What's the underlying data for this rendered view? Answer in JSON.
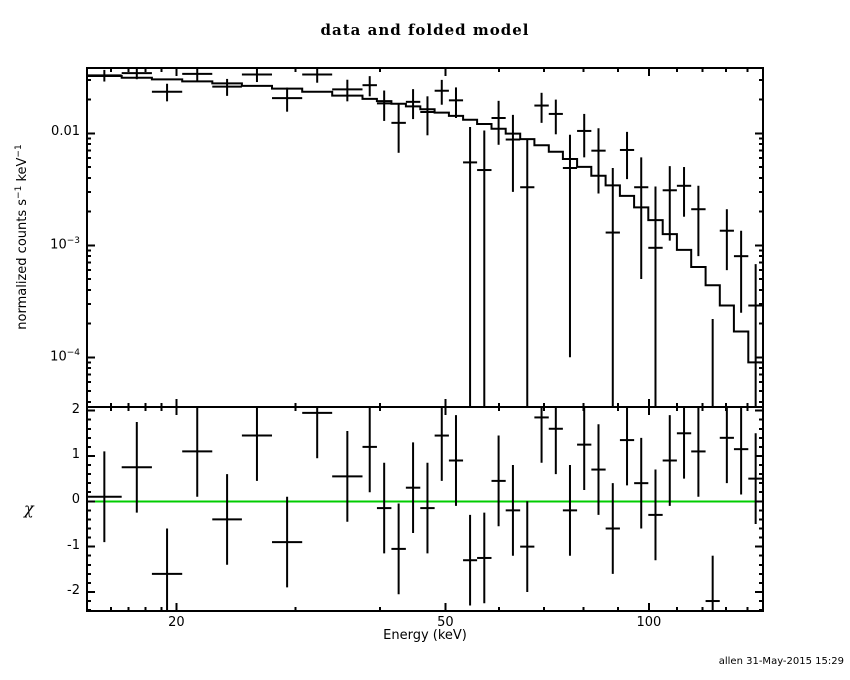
{
  "title": "data and folded model",
  "credit": "allen 31-May-2015 15:29",
  "colors": {
    "foreground": "#000000",
    "background": "#ffffff",
    "zero_line": "#00cc00"
  },
  "chart_data": {
    "type": "line",
    "subtype": "xspec-data-and-folded-model",
    "title": "data and folded model",
    "xlabel": "Energy (keV)",
    "x_scale": "log",
    "xlim": [
      14.75,
      147.5
    ],
    "x_major_ticks": [
      {
        "value": 20,
        "label": "20"
      },
      {
        "value": 50,
        "label": "50"
      },
      {
        "value": 100,
        "label": "100"
      }
    ],
    "x_minor_ticks": [
      16,
      17,
      18,
      19,
      30,
      40,
      60,
      70,
      80,
      90,
      110,
      120,
      130,
      140
    ],
    "panels": [
      {
        "name": "spectrum",
        "ylabel": "normalized counts s^-1 keV^-1",
        "ylabel_rich": [
          [
            "normalized counts s",
            false
          ],
          [
            "−1",
            true
          ],
          [
            " keV",
            false
          ],
          [
            "−1",
            true
          ]
        ],
        "y_scale": "log",
        "ylim": [
          3.6e-05,
          0.0383
        ],
        "y_major_ticks": [
          {
            "value": 0.01,
            "label": "0.01"
          },
          {
            "value": 0.001,
            "label": "10^−3"
          },
          {
            "value": 0.0001,
            "label": "10^−4"
          }
        ]
      },
      {
        "name": "residuals",
        "ylabel": "χ",
        "y_scale": "linear",
        "ylim": [
          -2.42,
          2.08
        ],
        "y_major_ticks": [
          {
            "value": 2,
            "label": "2"
          },
          {
            "value": 1,
            "label": "1"
          },
          {
            "value": 0,
            "label": "0"
          },
          {
            "value": -1,
            "label": "-1"
          },
          {
            "value": -2,
            "label": "-2"
          }
        ],
        "y_minor_step": 0.2,
        "zero_line": {
          "y": 0,
          "color": "#00cc00"
        }
      }
    ],
    "series": {
      "bin_edges_keV": [
        14.75,
        16.6,
        18.4,
        20.4,
        22.6,
        25.0,
        27.7,
        30.7,
        34.0,
        37.7,
        39.6,
        41.6,
        43.7,
        45.9,
        48.2,
        50.6,
        53.1,
        55.7,
        58.5,
        61.4,
        64.5,
        67.7,
        71.1,
        74.6,
        78.3,
        82.2,
        86.3,
        90.6,
        95.1,
        99.8,
        104.8,
        110.0,
        115.5,
        121.3,
        127.3,
        133.6,
        140.3,
        147.5
      ],
      "model_counts": [
        0.0325,
        0.0314,
        0.0303,
        0.0291,
        0.0279,
        0.0265,
        0.0251,
        0.0235,
        0.0217,
        0.0203,
        0.0194,
        0.0184,
        0.0174,
        0.0164,
        0.0153,
        0.0143,
        0.0132,
        0.0121,
        0.011,
        0.00994,
        0.00887,
        0.00783,
        0.00684,
        0.0059,
        0.00501,
        0.00418,
        0.00343,
        0.00276,
        0.00218,
        0.00168,
        0.00126,
        0.00091,
        0.00064,
        0.00044,
        0.00029,
        0.00017,
        9e-05
      ],
      "data_counts": [
        0.0329,
        0.0345,
        0.0235,
        0.0339,
        0.0261,
        0.0335,
        0.0206,
        0.0335,
        0.0247,
        0.0269,
        0.0185,
        0.0124,
        0.0191,
        0.0155,
        0.024,
        0.0197,
        0.0055,
        0.0047,
        0.0137,
        0.0088,
        0.0033,
        0.0177,
        0.0149,
        0.0049,
        0.0105,
        0.007,
        0.0013,
        0.0071,
        0.0033,
        0.00095,
        0.0031,
        0.0034,
        0.0021,
        3e-05,
        0.00135,
        0.0008,
        0.00029
      ],
      "data_sigma": [
        0.0039,
        0.0041,
        0.0042,
        0.0044,
        0.0045,
        0.0048,
        0.005,
        0.0052,
        0.0054,
        0.0055,
        0.0056,
        0.0057,
        0.0057,
        0.0059,
        0.006,
        0.006,
        0.0059,
        0.0059,
        0.0058,
        0.0058,
        0.0056,
        0.0053,
        0.0051,
        0.0048,
        0.0044,
        0.0041,
        0.0036,
        0.0032,
        0.0028,
        0.0024,
        0.002,
        0.0016,
        0.0013,
        0.00019,
        0.00075,
        0.00055,
        0.00039
      ],
      "chi": [
        0.1,
        0.75,
        -1.6,
        1.1,
        -0.4,
        1.45,
        -0.9,
        1.95,
        0.55,
        1.2,
        -0.15,
        -1.05,
        0.3,
        -0.15,
        1.45,
        0.9,
        -1.3,
        -1.25,
        0.45,
        -0.2,
        -1.0,
        1.85,
        1.6,
        -0.2,
        1.25,
        0.7,
        -0.6,
        1.35,
        0.4,
        -0.3,
        0.9,
        1.5,
        1.1,
        -2.2,
        1.4,
        1.15,
        0.5
      ],
      "chi_err": 1.0
    }
  }
}
